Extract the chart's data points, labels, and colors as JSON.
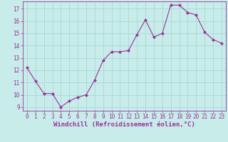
{
  "x": [
    0,
    1,
    2,
    3,
    4,
    5,
    6,
    7,
    8,
    9,
    10,
    11,
    12,
    13,
    14,
    15,
    16,
    17,
    18,
    19,
    20,
    21,
    22,
    23
  ],
  "y": [
    12.2,
    11.1,
    10.1,
    10.1,
    9.0,
    9.5,
    9.8,
    10.0,
    11.2,
    12.8,
    13.5,
    13.5,
    13.6,
    14.9,
    16.1,
    14.7,
    15.0,
    17.3,
    17.3,
    16.7,
    16.5,
    15.1,
    14.5,
    14.2
  ],
  "line_color": "#993399",
  "marker": "D",
  "marker_size": 2,
  "bg_color": "#c8ecea",
  "grid_color": "#a0d4d2",
  "ylim_min": 8.7,
  "ylim_max": 17.6,
  "yticks": [
    9,
    10,
    11,
    12,
    13,
    14,
    15,
    16,
    17
  ],
  "xticks": [
    0,
    1,
    2,
    3,
    4,
    5,
    6,
    7,
    8,
    9,
    10,
    11,
    12,
    13,
    14,
    15,
    16,
    17,
    18,
    19,
    20,
    21,
    22,
    23
  ],
  "xlabel": "Windchill (Refroidissement éolien,°C)",
  "axis_color": "#993399",
  "tick_fontsize": 5.5,
  "label_fontsize": 6.5
}
